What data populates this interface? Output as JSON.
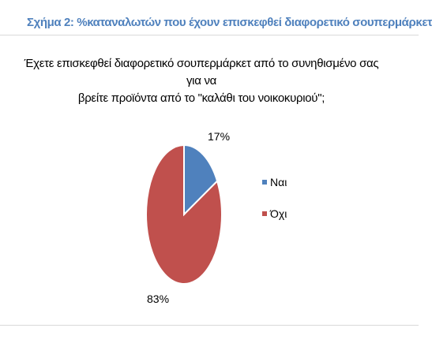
{
  "figure_title": "Σχήμα 2: %καταναλωτών που έχουν επισκεφθεί διαφορετικό σουπερμάρκετ",
  "chart_data": {
    "type": "pie",
    "title_lines": [
      "Έχετε επισκεφθεί διαφορετικό σουπερμάρκετ από το συνηθισμένο σας για να",
      "βρείτε προϊόντα από το \"καλάθι του νοικοκυριού\";"
    ],
    "categories": [
      "Ναι",
      "Όχι"
    ],
    "values": [
      17,
      83
    ],
    "data_labels": [
      "17%",
      "83%"
    ],
    "colors": [
      "#4f81bd",
      "#c0504d"
    ],
    "legend_position": "right"
  }
}
